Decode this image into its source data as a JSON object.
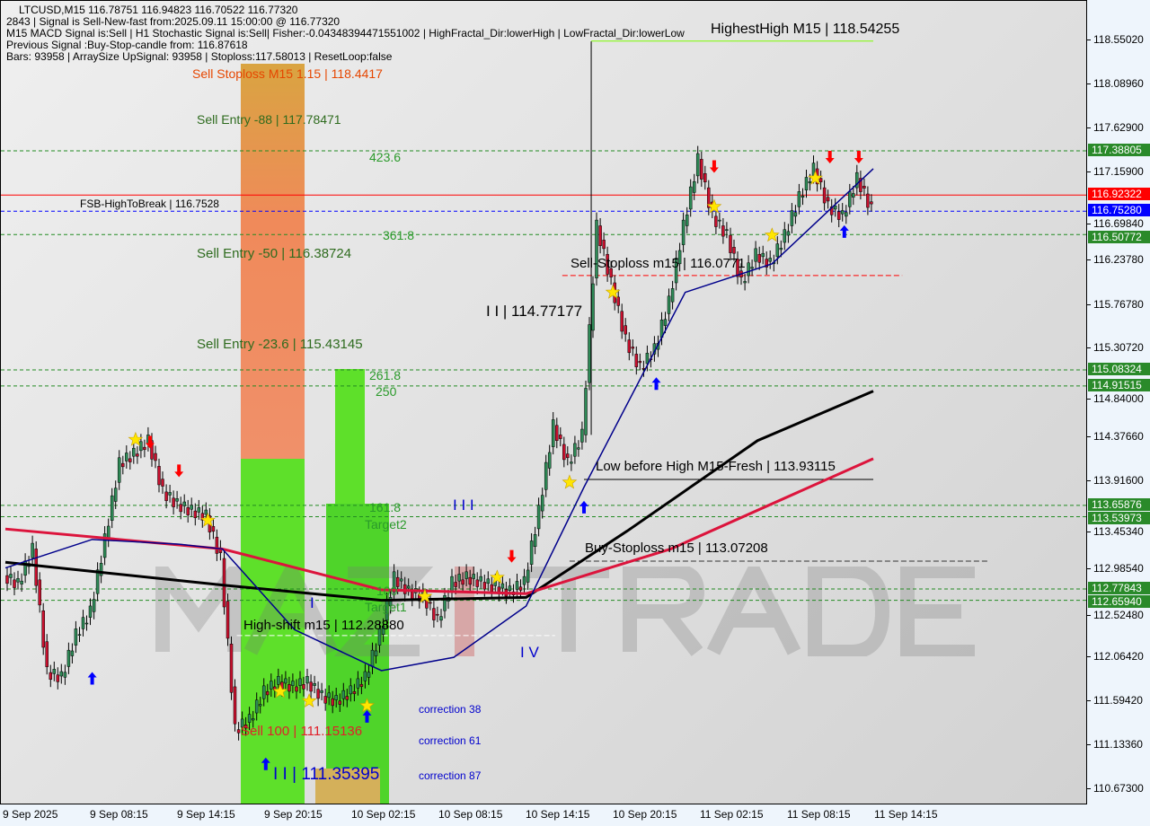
{
  "header": {
    "line1": "LTCUSD,M15  116.78751 116.94823 116.70522 116.77320",
    "line2": "2843 | Signal is Sell-New-fast from:2025.09.11 15:00:00 @ 116.77320",
    "line3": "M15 MACD Signal is:Sell | H1 Stochastic Signal is:Sell| Fisher:-0.04348394471551002 | HighFractal_Dir:lowerHigh | LowFractal_Dir:lowerLow",
    "line4": "Previous Signal :Buy-Stop-candle from: 116.87618",
    "line5": "Bars: 93958 | ArraySize UpSignal: 93958 | Stoploss:117.58013 | ResetLoop:false"
  },
  "watermark": {
    "text_gray": "MAZ",
    "text_red": "I",
    "text_gray2": "TRADE"
  },
  "labels": {
    "sell_stoploss_top": "Sell Stoploss M15 1.15 | 118.4417",
    "sell_entry_88": "Sell Entry -88 | 117.78471",
    "fib_423": "423.6",
    "fsb": "FSB-HighToBreak | 116.7528",
    "sell_entry_50": "Sell Entry -50 | 116.38724",
    "fib_361": "361.8",
    "sell_entry_23": "Sell Entry -23.6 | 115.43145",
    "fib_261": "261.8",
    "fib_250": "250",
    "fib_161": "161.8",
    "target2": "Target2",
    "fib_100": "100",
    "target1": "Target1",
    "highest_high": "HighestHigh    M15 | 118.54255",
    "sell_stoploss_m15": "Sell-Stoploss m15 | 116.0771",
    "wave_ii_top": "I I | 114.77177",
    "low_before_high": "Low before High   M15-Fresh | 113.93115",
    "wave_iii": "I I I",
    "buy_stoploss": "Buy-Stoploss m15 | 113.07208",
    "wave_i": "I",
    "high_shift": "High-shift m15 | 112.28880",
    "wave_iv": "I V",
    "correction38": "correction 38",
    "correction61": "correction 61",
    "correction87": "correction 87",
    "sell100": "Sell 100 | 111.15136",
    "wave_ii_bottom": "I I | 111.35395"
  },
  "colors": {
    "bull": "#2e8b57",
    "bear": "#c8102e",
    "ma_slow": "#000000",
    "ma_mid": "#dc143c",
    "ma_fast": "#00008b",
    "level_green": "#228b22",
    "level_red": "#ff0000",
    "level_blue": "#0000ff"
  },
  "chart_data": {
    "type": "candlestick",
    "symbol": "LTCUSD",
    "timeframe": "M15",
    "ylim": [
      110.5,
      118.9
    ],
    "y_ticks": [
      "118.55020",
      "118.08960",
      "117.62900",
      "117.15900",
      "116.69840",
      "116.23780",
      "115.76780",
      "115.30720",
      "114.84000",
      "114.37660",
      "113.91600",
      "113.45340",
      "112.98540",
      "112.52480",
      "112.06420",
      "111.59420",
      "111.13360",
      "110.67300"
    ],
    "x_ticks": [
      "9 Sep 2025",
      "9 Sep 08:15",
      "9 Sep 14:15",
      "9 Sep 20:15",
      "10 Sep 02:15",
      "10 Sep 08:15",
      "10 Sep 14:15",
      "10 Sep 20:15",
      "11 Sep 02:15",
      "11 Sep 08:15",
      "11 Sep 14:15"
    ],
    "hourly_close": [
      112.92,
      112.83,
      113.2,
      111.9,
      111.85,
      112.3,
      112.54,
      113.3,
      114.1,
      114.2,
      114.34,
      113.8,
      113.67,
      113.6,
      113.55,
      113.1,
      111.3,
      111.4,
      111.7,
      111.8,
      111.75,
      111.8,
      111.65,
      111.6,
      111.7,
      111.85,
      112.3,
      112.9,
      112.75,
      112.7,
      112.45,
      112.85,
      112.9,
      112.85,
      112.8,
      112.75,
      112.85,
      113.6,
      114.5,
      114.1,
      114.4,
      116.6,
      116.0,
      115.4,
      115.1,
      115.3,
      115.8,
      116.6,
      117.3,
      116.7,
      116.5,
      116.0,
      116.3,
      116.2,
      116.5,
      116.9,
      117.2,
      116.8,
      116.7,
      117.1,
      116.77
    ],
    "ma_slow": [
      [
        0,
        113.06
      ],
      [
        15,
        112.82
      ],
      [
        26,
        112.66
      ],
      [
        36,
        112.69
      ],
      [
        43,
        113.39
      ],
      [
        52,
        114.34
      ],
      [
        60,
        114.86
      ]
    ],
    "ma_mid": [
      [
        0,
        113.41
      ],
      [
        15,
        113.2
      ],
      [
        26,
        112.77
      ],
      [
        36,
        112.73
      ],
      [
        46,
        113.2
      ],
      [
        60,
        114.15
      ]
    ],
    "ma_fast": [
      [
        0,
        113.0
      ],
      [
        6,
        113.3
      ],
      [
        12,
        113.25
      ],
      [
        15,
        113.2
      ],
      [
        20,
        112.35
      ],
      [
        26,
        111.92
      ],
      [
        31,
        112.06
      ],
      [
        36,
        112.6
      ],
      [
        40,
        113.85
      ],
      [
        47,
        115.9
      ],
      [
        53,
        116.2
      ],
      [
        60,
        117.2
      ]
    ],
    "levels": [
      {
        "price": 117.38805,
        "label": "117.38805",
        "color": "#228b22",
        "style": "dash"
      },
      {
        "price": 116.92322,
        "label": "116.92322",
        "color": "#ff0000",
        "style": "solid"
      },
      {
        "price": 116.7528,
        "label": "116.75280",
        "color": "#0000ff",
        "style": "dash"
      },
      {
        "price": 116.50772,
        "label": "116.50772",
        "color": "#228b22",
        "style": "dash"
      },
      {
        "price": 115.08324,
        "label": "115.08324",
        "color": "#228b22",
        "style": "dash"
      },
      {
        "price": 114.91515,
        "label": "114.91515",
        "color": "#228b22",
        "style": "dash"
      },
      {
        "price": 113.65876,
        "label": "113.65876",
        "color": "#228b22",
        "style": "dash"
      },
      {
        "price": 113.53973,
        "label": "113.53973",
        "color": "#228b22",
        "style": "dash"
      },
      {
        "price": 112.77843,
        "label": "112.77843",
        "color": "#228b22",
        "style": "dash"
      },
      {
        "price": 112.6594,
        "label": "112.65940",
        "color": "#228b22",
        "style": "dash"
      }
    ],
    "segments": [
      {
        "price": 118.54255,
        "from_hour": 40.5,
        "to_hour": 60,
        "color": "#7cfc00"
      },
      {
        "price": 116.0771,
        "from_hour": 38.5,
        "to_hour": 62,
        "color": "#ff0000"
      },
      {
        "price": 113.93115,
        "from_hour": 40,
        "to_hour": 60,
        "color": "#000000"
      },
      {
        "price": 113.07208,
        "from_hour": 39,
        "to_hour": 68,
        "color": "#333333"
      },
      {
        "price": 112.2888,
        "from_hour": 16,
        "to_hour": 38,
        "color": "#ffffff"
      }
    ],
    "signals": [
      {
        "hour": 9,
        "price": 114.35,
        "type": "star"
      },
      {
        "hour": 14,
        "price": 113.5,
        "type": "star"
      },
      {
        "hour": 19,
        "price": 111.7,
        "type": "star"
      },
      {
        "hour": 21,
        "price": 111.6,
        "type": "star"
      },
      {
        "hour": 25,
        "price": 111.55,
        "type": "star"
      },
      {
        "hour": 29,
        "price": 112.7,
        "type": "star"
      },
      {
        "hour": 34,
        "price": 112.9,
        "type": "star"
      },
      {
        "hour": 39,
        "price": 113.9,
        "type": "star"
      },
      {
        "hour": 42,
        "price": 115.9,
        "type": "star"
      },
      {
        "hour": 49,
        "price": 116.8,
        "type": "star"
      },
      {
        "hour": 53,
        "price": 116.5,
        "type": "star"
      },
      {
        "hour": 56,
        "price": 117.1,
        "type": "star"
      },
      {
        "hour": 10,
        "price": 114.2,
        "type": "sell"
      },
      {
        "hour": 12,
        "price": 113.9,
        "type": "sell"
      },
      {
        "hour": 35,
        "price": 113.0,
        "type": "sell"
      },
      {
        "hour": 49,
        "price": 117.1,
        "type": "sell"
      },
      {
        "hour": 57,
        "price": 117.2,
        "type": "sell"
      },
      {
        "hour": 59,
        "price": 117.2,
        "type": "sell"
      },
      {
        "hour": 6,
        "price": 112.0,
        "type": "buy"
      },
      {
        "hour": 18,
        "price": 111.1,
        "type": "buy"
      },
      {
        "hour": 25,
        "price": 111.6,
        "type": "buy"
      },
      {
        "hour": 40,
        "price": 113.8,
        "type": "buy"
      },
      {
        "hour": 45,
        "price": 115.1,
        "type": "buy"
      },
      {
        "hour": 58,
        "price": 116.7,
        "type": "buy"
      }
    ]
  }
}
